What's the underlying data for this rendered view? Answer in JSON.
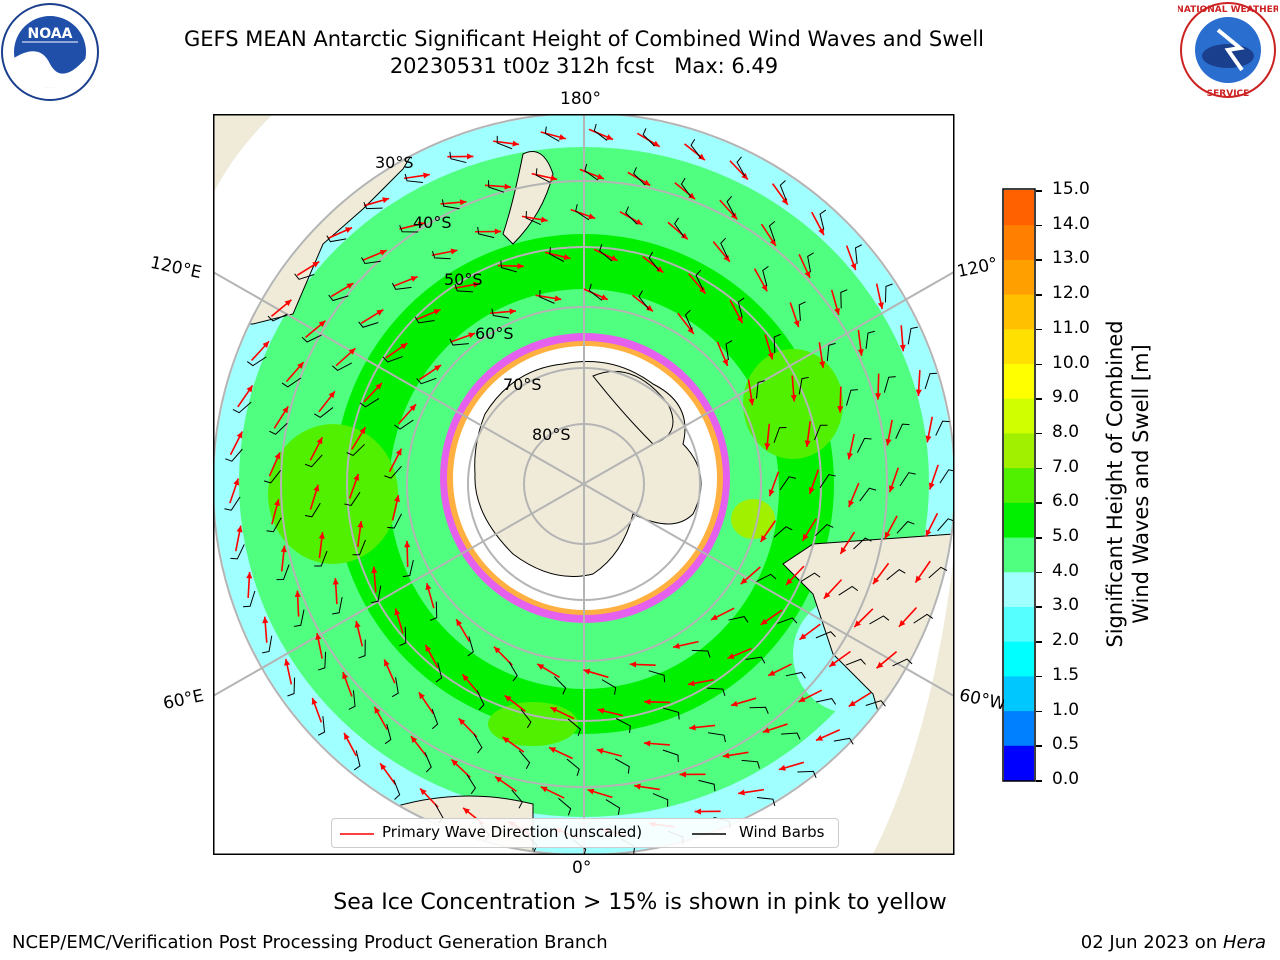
{
  "title": {
    "line1": "GEFS MEAN Antarctic Significant Height of Combined Wind Waves and Swell",
    "line2": "20230531 t00z 312h fcst   Max: 6.49"
  },
  "logos": {
    "left": "NOAA",
    "right": "NATIONAL WEATHER SERVICE"
  },
  "map": {
    "projection": "south-polar-stereographic",
    "longitude_labels": [
      "180°",
      "120°E",
      "120°",
      "60°E",
      "60°W",
      "0°"
    ],
    "latitude_labels": [
      "30°S",
      "40°S",
      "50°S",
      "60°S",
      "70°S",
      "80°S"
    ],
    "colors": {
      "land": "#efebd8",
      "sea_ice": "#ff44ff",
      "graticule": "#b4b4b4",
      "wave_arrows": "#ff0000",
      "wind_barbs": "#000000"
    }
  },
  "legend": {
    "wave_label": "Primary Wave Direction (unscaled)",
    "barb_label": "Wind Barbs"
  },
  "colorbar": {
    "title_line1": "Significant Height of Combined",
    "title_line2": "Wind Waves and Swell [m]",
    "ticks": [
      "15.0",
      "14.0",
      "13.0",
      "12.0",
      "11.0",
      "10.0",
      "9.0",
      "8.0",
      "7.0",
      "6.0",
      "5.0",
      "4.0",
      "3.0",
      "2.0",
      "1.5",
      "1.0",
      "0.5",
      "0.0"
    ],
    "colors": [
      "#0000ff",
      "#0080ff",
      "#00c8ff",
      "#00ffff",
      "#55ffff",
      "#a0ffff",
      "#50ff80",
      "#00f000",
      "#50f000",
      "#a0f000",
      "#d0ff00",
      "#ffff00",
      "#ffe000",
      "#ffc000",
      "#ffa000",
      "#ff8000",
      "#ff6000",
      "#ff3000",
      "#ff0000"
    ]
  },
  "note": "Sea Ice Concentration > 15% is shown in pink to yellow",
  "footer": {
    "left": "NCEP/EMC/Verification Post Processing Product Generation Branch",
    "date": "02 Jun 2023 on ",
    "machine": "Hera"
  }
}
